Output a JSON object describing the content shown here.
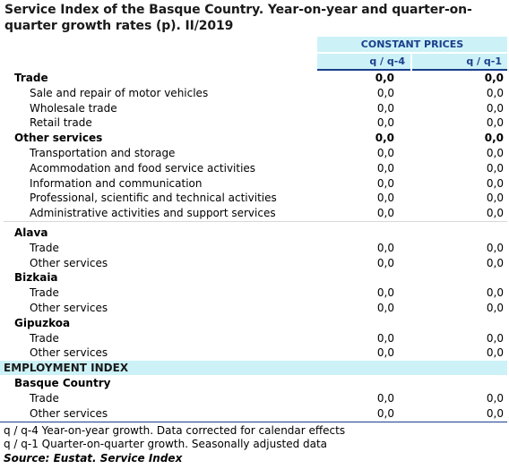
{
  "title": "Service Index of the Basque Country. Year-on-year and quarter-on-quarter growth rates (p). II/2019",
  "header": {
    "group": "CONSTANT PRICES",
    "col1": "q / q-4",
    "col2": "q / q-1"
  },
  "rows": [
    {
      "label": "Trade",
      "v1": "0,0",
      "v2": "0,0"
    },
    {
      "label": "Sale and repair of motor vehicles",
      "v1": "0,0",
      "v2": "0,0"
    },
    {
      "label": "Wholesale trade",
      "v1": "0,0",
      "v2": "0,0"
    },
    {
      "label": "Retail trade",
      "v1": "0,0",
      "v2": "0,0"
    },
    {
      "label": "Other services",
      "v1": "0,0",
      "v2": "0,0"
    },
    {
      "label": "Transportation and storage",
      "v1": "0,0",
      "v2": "0,0"
    },
    {
      "label": "Acommodation and food service activities",
      "v1": "0,0",
      "v2": "0,0"
    },
    {
      "label": "Information and communication",
      "v1": "0,0",
      "v2": "0,0"
    },
    {
      "label": "Professional, scientific and technical activities",
      "v1": "0,0",
      "v2": "0,0"
    },
    {
      "label": "Administrative activities and support services",
      "v1": "0,0",
      "v2": "0,0"
    },
    {
      "label": "Alava"
    },
    {
      "label": "Trade",
      "v1": "0,0",
      "v2": "0,0"
    },
    {
      "label": "Other services",
      "v1": "0,0",
      "v2": "0,0"
    },
    {
      "label": "Bizkaia"
    },
    {
      "label": "Trade",
      "v1": "0,0",
      "v2": "0,0"
    },
    {
      "label": "Other services",
      "v1": "0,0",
      "v2": "0,0"
    },
    {
      "label": "Gipuzkoa"
    },
    {
      "label": "Trade",
      "v1": "0,0",
      "v2": "0,0"
    },
    {
      "label": "Other services",
      "v1": "0,0",
      "v2": "0,0"
    }
  ],
  "employment": {
    "heading": "EMPLOYMENT INDEX",
    "rows": [
      {
        "label": "Basque Country"
      },
      {
        "label": "Trade",
        "v1": "0,0",
        "v2": "0,0"
      },
      {
        "label": "Other services",
        "v1": "0,0",
        "v2": "0,0"
      }
    ]
  },
  "footnotes": {
    "note1": "q / q-4 Year-on-year growth. Data corrected for calendar effects",
    "note2": "q / q-1 Quarter-on-quarter growth. Seasonally adjusted data",
    "source": "Source: Eustat. Service Index"
  },
  "colors": {
    "header_bg": "#ccf2f8",
    "header_text": "#1a3f8a"
  }
}
